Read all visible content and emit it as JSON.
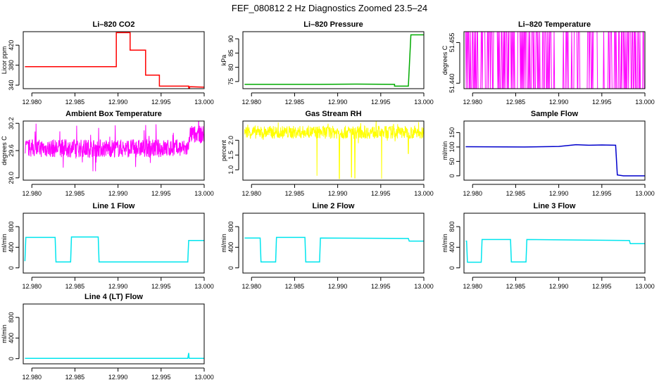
{
  "figure": {
    "title": "FEF_080812  2 Hz Diagnostics Zoomed 23.5–24"
  },
  "chart_data": [
    {
      "type": "line",
      "title": "Li–820 CO2",
      "ylabel": "Licor ppm",
      "xlim": [
        12.979,
        13.0
      ],
      "ylim": [
        333,
        447
      ],
      "xticks": [
        12.98,
        12.985,
        12.99,
        12.995,
        13.0
      ],
      "xtick_labels": [
        "12.980",
        "12.985",
        "12.990",
        "12.995",
        "13.000"
      ],
      "yticks": [
        340,
        380,
        420
      ],
      "ytick_labels": [
        "340",
        "380",
        "420"
      ],
      "color": "#ff0000",
      "series": [
        {
          "x": [
            12.9792,
            12.984,
            12.9898,
            12.9898,
            12.9914,
            12.9914,
            12.9932,
            12.9932,
            12.9948,
            12.9948,
            12.9982,
            12.9982,
            12.9983,
            12.9983,
            13.0
          ],
          "y": [
            377,
            377,
            377,
            445,
            445,
            410,
            410,
            360,
            360,
            338,
            338,
            330,
            330,
            337,
            336
          ]
        }
      ]
    },
    {
      "type": "line",
      "title": "Li–820 Pressure",
      "ylabel": "kPa",
      "xlim": [
        12.979,
        13.0
      ],
      "ylim": [
        72.5,
        92.5
      ],
      "xticks": [
        12.98,
        12.985,
        12.99,
        12.995,
        13.0
      ],
      "xtick_labels": [
        "12.980",
        "12.985",
        "12.990",
        "12.995",
        "13.000"
      ],
      "yticks": [
        75,
        80,
        85,
        90
      ],
      "ytick_labels": [
        "75",
        "80",
        "85",
        "90"
      ],
      "color": "#00aa00",
      "series": [
        {
          "x": [
            12.9792,
            12.988,
            12.992,
            12.9966,
            12.9966,
            12.9982,
            12.9985,
            13.0
          ],
          "y": [
            74.0,
            74.0,
            74.1,
            74.0,
            73.4,
            73.4,
            91.4,
            91.4
          ]
        }
      ]
    },
    {
      "type": "line",
      "title": "Li–820 Temperature",
      "ylabel": "degrees C",
      "xlim": [
        12.979,
        13.0
      ],
      "ylim": [
        51.438,
        51.459
      ],
      "xticks": [
        12.98,
        12.985,
        12.99,
        12.995,
        13.0
      ],
      "xtick_labels": [
        "12.980",
        "12.985",
        "12.990",
        "12.995",
        "13.000"
      ],
      "yticks": [
        51.44,
        51.455
      ],
      "ytick_labels": [
        "51.440",
        "51.455"
      ],
      "color": "#ff00ff",
      "noise": {
        "kind": "binary",
        "low": 51.438,
        "high": 51.459,
        "gaps": [
          [
            12.9895,
            12.9908
          ],
          [
            12.9925,
            12.9933
          ],
          [
            12.9946,
            12.9952
          ]
        ]
      }
    },
    {
      "type": "line",
      "title": "Ambient Box Temperature",
      "ylabel": "degrees C",
      "xlim": [
        12.979,
        13.0
      ],
      "ylim": [
        28.95,
        30.25
      ],
      "xticks": [
        12.98,
        12.985,
        12.99,
        12.995,
        13.0
      ],
      "xtick_labels": [
        "12.980",
        "12.985",
        "12.990",
        "12.995",
        "13.000"
      ],
      "yticks": [
        29.0,
        29.6,
        30.2
      ],
      "ytick_labels": [
        "29.0",
        "29.6",
        "30.2"
      ],
      "color": "#ff00ff",
      "noise": {
        "kind": "band",
        "x0": 12.9792,
        "x1": 13.0,
        "center": 29.65,
        "amp": 0.2,
        "spike": 0.55,
        "step_at": 12.9982,
        "step_center": 29.95
      }
    },
    {
      "type": "line",
      "title": "Gas Stream RH",
      "ylabel": "percent",
      "xlim": [
        12.979,
        13.0
      ],
      "ylim": [
        0.65,
        2.65
      ],
      "xticks": [
        12.98,
        12.985,
        12.99,
        12.995,
        13.0
      ],
      "xtick_labels": [
        "12.980",
        "12.985",
        "12.990",
        "12.995",
        "13.000"
      ],
      "yticks": [
        1.0,
        1.5,
        2.0
      ],
      "ytick_labels": [
        "1.0",
        "1.5",
        "2.0"
      ],
      "color": "#ffff00",
      "noise": {
        "kind": "band",
        "x0": 12.9792,
        "x1": 13.0,
        "center": 2.27,
        "amp": 0.22,
        "spike": 0.4,
        "drops": [
          [
            12.9876,
            0.8
          ],
          [
            12.9902,
            0.7
          ],
          [
            12.9916,
            0.75
          ],
          [
            12.992,
            0.72
          ],
          [
            12.9951,
            0.7
          ],
          [
            12.9982,
            1.55
          ]
        ]
      }
    },
    {
      "type": "line",
      "title": "Sample Flow",
      "ylabel": "ml/min",
      "xlim": [
        12.979,
        13.0
      ],
      "ylim": [
        -15,
        190
      ],
      "xticks": [
        12.98,
        12.985,
        12.99,
        12.995,
        13.0
      ],
      "xtick_labels": [
        "12.980",
        "12.985",
        "12.990",
        "12.995",
        "13.000"
      ],
      "yticks": [
        0,
        50,
        100,
        150
      ],
      "ytick_labels": [
        "0",
        "50",
        "100",
        "150"
      ],
      "color": "#0000cc",
      "series": [
        {
          "x": [
            12.9792,
            12.986,
            12.99,
            12.992,
            12.9935,
            12.995,
            12.9966,
            12.9968,
            12.9975,
            13.0
          ],
          "y": [
            101,
            100,
            102,
            108,
            106,
            107,
            106,
            3,
            0,
            0
          ]
        }
      ]
    },
    {
      "type": "line",
      "title": "Line 1 Flow",
      "ylabel": "ml/min",
      "xlim": [
        12.979,
        13.0
      ],
      "ylim": [
        -100,
        1060
      ],
      "xticks": [
        12.98,
        12.985,
        12.99,
        12.995,
        13.0
      ],
      "xtick_labels": [
        "12.980",
        "12.985",
        "12.990",
        "12.995",
        "13.000"
      ],
      "yticks": [
        0,
        400,
        800
      ],
      "ytick_labels": [
        "0",
        "400",
        "800"
      ],
      "color": "#00e5ee",
      "series": [
        {
          "x": [
            12.9792,
            12.9793,
            12.9827,
            12.9828,
            12.9845,
            12.9846,
            12.9877,
            12.9878,
            12.9981,
            12.9982,
            13.0
          ],
          "y": [
            130,
            590,
            590,
            115,
            115,
            600,
            600,
            115,
            115,
            530,
            530
          ]
        }
      ]
    },
    {
      "type": "line",
      "title": "Line 2 Flow",
      "ylabel": "ml/min",
      "xlim": [
        12.979,
        13.0
      ],
      "ylim": [
        -100,
        1060
      ],
      "xticks": [
        12.98,
        12.985,
        12.99,
        12.995,
        13.0
      ],
      "xtick_labels": [
        "12.980",
        "12.985",
        "12.990",
        "12.995",
        "13.000"
      ],
      "yticks": [
        0,
        400,
        800
      ],
      "ytick_labels": [
        "0",
        "400",
        "800"
      ],
      "color": "#00e5ee",
      "series": [
        {
          "x": [
            12.9792,
            12.981,
            12.9811,
            12.9828,
            12.9829,
            12.9862,
            12.9863,
            12.9879,
            12.988,
            12.9982,
            12.9983,
            13.0
          ],
          "y": [
            580,
            580,
            115,
            115,
            590,
            590,
            115,
            115,
            580,
            570,
            520,
            520
          ]
        }
      ]
    },
    {
      "type": "line",
      "title": "Line 3 Flow",
      "ylabel": "ml/min",
      "xlim": [
        12.979,
        13.0
      ],
      "ylim": [
        -100,
        1060
      ],
      "xticks": [
        12.98,
        12.985,
        12.99,
        12.995,
        13.0
      ],
      "xtick_labels": [
        "12.980",
        "12.985",
        "12.990",
        "12.995",
        "13.000"
      ],
      "yticks": [
        0,
        400,
        800
      ],
      "ytick_labels": [
        "0",
        "400",
        "800"
      ],
      "color": "#00e5ee",
      "series": [
        {
          "x": [
            12.9792,
            12.9793,
            12.9794,
            12.981,
            12.9811,
            12.9844,
            12.9845,
            12.9862,
            12.9863,
            12.9982,
            12.9983,
            13.0
          ],
          "y": [
            520,
            520,
            110,
            110,
            550,
            550,
            115,
            115,
            550,
            530,
            470,
            470
          ]
        }
      ]
    },
    {
      "type": "line",
      "title": "Line 4 (LT) Flow",
      "ylabel": "ml/min",
      "xlim": [
        12.979,
        13.0
      ],
      "ylim": [
        -100,
        1060
      ],
      "xticks": [
        12.98,
        12.985,
        12.99,
        12.995,
        13.0
      ],
      "xtick_labels": [
        "12.980",
        "12.985",
        "12.990",
        "12.995",
        "13.000"
      ],
      "yticks": [
        0,
        400,
        800
      ],
      "ytick_labels": [
        "0",
        "400",
        "800"
      ],
      "color": "#00e5ee",
      "series": [
        {
          "x": [
            12.9792,
            12.9981,
            12.9982,
            12.99825,
            12.9983,
            13.0
          ],
          "y": [
            5,
            5,
            110,
            10,
            5,
            5
          ]
        }
      ]
    }
  ]
}
